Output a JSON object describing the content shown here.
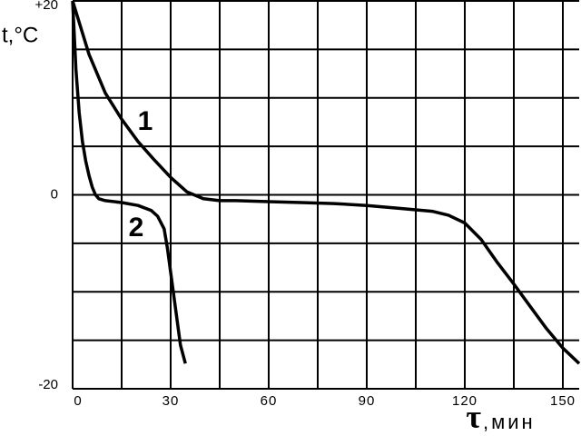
{
  "chart_data": {
    "type": "line",
    "y_label": "t,°C",
    "x_label_symbol": "τ",
    "x_label_unit": ",мин",
    "xlim": [
      0,
      155
    ],
    "ylim": [
      -20,
      20
    ],
    "xticks": [
      0,
      30,
      60,
      90,
      120,
      150
    ],
    "yticks": [
      {
        "value": 20,
        "label": "+20"
      },
      0,
      -20
    ],
    "xgrid": [
      0,
      15,
      30,
      45,
      60,
      75,
      90,
      105,
      120,
      135,
      150
    ],
    "ygrid": [
      -20,
      -15,
      -10,
      -5,
      0,
      5,
      10,
      15,
      20
    ],
    "grid": true,
    "series": [
      {
        "name": "1",
        "color": "#000000",
        "x": [
          0,
          5,
          10,
          15,
          20,
          25,
          30,
          35,
          40,
          45,
          50,
          60,
          70,
          80,
          90,
          100,
          110,
          115,
          120,
          125,
          130,
          135,
          140,
          145,
          150,
          155
        ],
        "values": [
          20,
          14.5,
          10.5,
          7.8,
          5.5,
          3.6,
          1.8,
          0.3,
          -0.4,
          -0.6,
          -0.6,
          -0.7,
          -0.8,
          -0.9,
          -1.1,
          -1.4,
          -1.7,
          -2.1,
          -2.9,
          -4.6,
          -7,
          -9.2,
          -11.5,
          -13.8,
          -15.8,
          -17.4
        ]
      },
      {
        "name": "2",
        "color": "#000000",
        "x": [
          0,
          1,
          2,
          3,
          4,
          5,
          6,
          7,
          8,
          10,
          15,
          20,
          24,
          26,
          28,
          29,
          30,
          31,
          32,
          33,
          34.5
        ],
        "values": [
          20,
          13,
          8.5,
          5.5,
          3.5,
          2,
          0.8,
          0,
          -0.4,
          -0.6,
          -0.8,
          -1.1,
          -1.6,
          -2.2,
          -3.5,
          -5.5,
          -8,
          -10.5,
          -13,
          -15.5,
          -17.4
        ]
      }
    ]
  }
}
